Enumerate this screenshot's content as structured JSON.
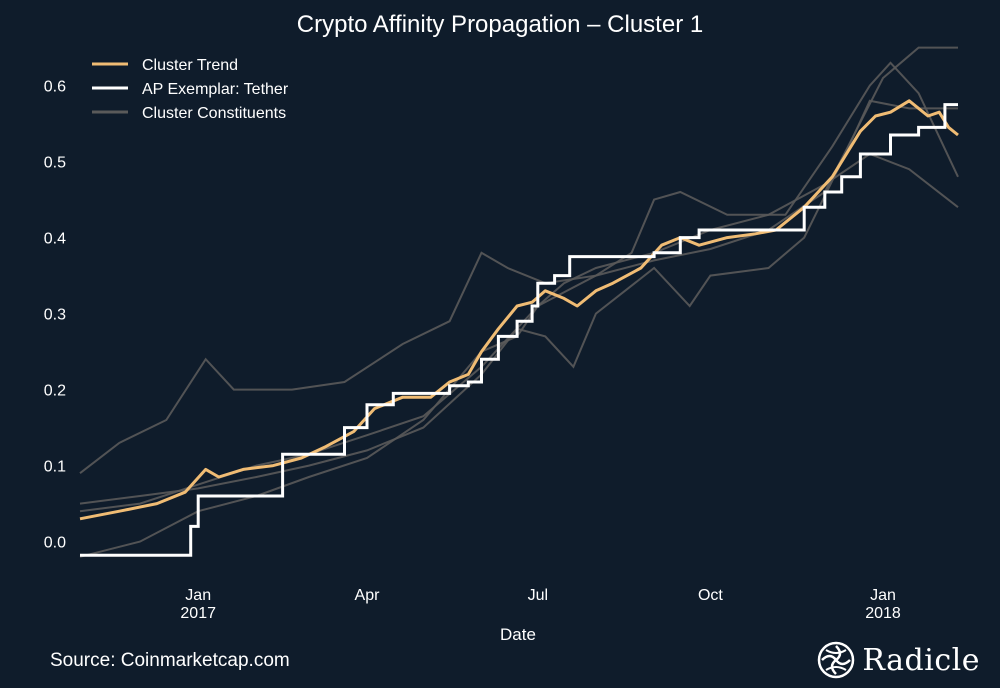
{
  "chart_data": {
    "type": "line",
    "title": "Crypto Affinity Propagation – Cluster 1",
    "xlabel": "Date",
    "ylabel": "",
    "x_ticks": [
      {
        "label": "Jan",
        "sub": "2017"
      },
      {
        "label": "Apr",
        "sub": ""
      },
      {
        "label": "Jul",
        "sub": ""
      },
      {
        "label": "Oct",
        "sub": ""
      },
      {
        "label": "Jan",
        "sub": "2018"
      }
    ],
    "x_range": [
      "2016-10-30",
      "2018-02-10"
    ],
    "y_ticks": [
      "0.0",
      "0.1",
      "0.2",
      "0.3",
      "0.4",
      "0.5",
      "0.6"
    ],
    "ylim": [
      -0.04,
      0.66
    ],
    "grid": false,
    "legend_position": "top-left",
    "series": [
      {
        "name": "Cluster Trend",
        "color": "#f0bc74",
        "style": "line",
        "points": [
          [
            "2016-10-30",
            0.03
          ],
          [
            "2016-11-20",
            0.04
          ],
          [
            "2016-12-10",
            0.05
          ],
          [
            "2016-12-25",
            0.065
          ],
          [
            "2017-01-05",
            0.095
          ],
          [
            "2017-01-12",
            0.085
          ],
          [
            "2017-01-25",
            0.095
          ],
          [
            "2017-02-10",
            0.1
          ],
          [
            "2017-02-25",
            0.11
          ],
          [
            "2017-03-10",
            0.125
          ],
          [
            "2017-03-25",
            0.145
          ],
          [
            "2017-04-05",
            0.175
          ],
          [
            "2017-04-20",
            0.19
          ],
          [
            "2017-05-05",
            0.19
          ],
          [
            "2017-05-15",
            0.21
          ],
          [
            "2017-05-25",
            0.22
          ],
          [
            "2017-06-01",
            0.25
          ],
          [
            "2017-06-10",
            0.28
          ],
          [
            "2017-06-20",
            0.31
          ],
          [
            "2017-06-28",
            0.315
          ],
          [
            "2017-07-05",
            0.33
          ],
          [
            "2017-07-15",
            0.32
          ],
          [
            "2017-07-22",
            0.31
          ],
          [
            "2017-08-01",
            0.33
          ],
          [
            "2017-08-10",
            0.34
          ],
          [
            "2017-08-25",
            0.36
          ],
          [
            "2017-09-05",
            0.39
          ],
          [
            "2017-09-15",
            0.4
          ],
          [
            "2017-09-25",
            0.39
          ],
          [
            "2017-10-10",
            0.4
          ],
          [
            "2017-10-25",
            0.405
          ],
          [
            "2017-11-05",
            0.41
          ],
          [
            "2017-11-20",
            0.44
          ],
          [
            "2017-12-05",
            0.48
          ],
          [
            "2017-12-20",
            0.54
          ],
          [
            "2017-12-28",
            0.56
          ],
          [
            "2018-01-05",
            0.565
          ],
          [
            "2018-01-15",
            0.58
          ],
          [
            "2018-01-25",
            0.56
          ],
          [
            "2018-01-31",
            0.565
          ],
          [
            "2018-02-05",
            0.545
          ],
          [
            "2018-02-10",
            0.535
          ]
        ]
      },
      {
        "name": "AP Exemplar: Tether",
        "color": "#ffffff",
        "style": "step",
        "points": [
          [
            "2016-10-30",
            -0.018
          ],
          [
            "2016-12-28",
            0.02
          ],
          [
            "2017-01-01",
            0.06
          ],
          [
            "2017-01-20",
            0.06
          ],
          [
            "2017-02-15",
            0.115
          ],
          [
            "2017-03-10",
            0.115
          ],
          [
            "2017-03-20",
            0.15
          ],
          [
            "2017-04-01",
            0.18
          ],
          [
            "2017-04-15",
            0.195
          ],
          [
            "2017-05-01",
            0.195
          ],
          [
            "2017-05-15",
            0.205
          ],
          [
            "2017-05-25",
            0.21
          ],
          [
            "2017-06-01",
            0.24
          ],
          [
            "2017-06-10",
            0.27
          ],
          [
            "2017-06-20",
            0.29
          ],
          [
            "2017-06-28",
            0.31
          ],
          [
            "2017-07-01",
            0.34
          ],
          [
            "2017-07-10",
            0.35
          ],
          [
            "2017-07-18",
            0.375
          ],
          [
            "2017-08-01",
            0.375
          ],
          [
            "2017-08-20",
            0.375
          ],
          [
            "2017-09-01",
            0.38
          ],
          [
            "2017-09-15",
            0.4
          ],
          [
            "2017-09-25",
            0.41
          ],
          [
            "2017-11-10",
            0.41
          ],
          [
            "2017-11-20",
            0.44
          ],
          [
            "2017-12-01",
            0.46
          ],
          [
            "2017-12-10",
            0.48
          ],
          [
            "2017-12-20",
            0.51
          ],
          [
            "2018-01-05",
            0.535
          ],
          [
            "2018-01-20",
            0.545
          ],
          [
            "2018-02-02",
            0.545
          ],
          [
            "2018-02-03",
            0.575
          ],
          [
            "2018-02-10",
            0.575
          ]
        ]
      },
      {
        "name": "Cluster Constituents",
        "color": "#5a5a5a",
        "style": "line",
        "members": [
          {
            "points": [
              [
                "2016-10-30",
                0.09
              ],
              [
                "2016-11-20",
                0.13
              ],
              [
                "2016-12-15",
                0.16
              ],
              [
                "2017-01-05",
                0.24
              ],
              [
                "2017-01-20",
                0.2
              ],
              [
                "2017-02-20",
                0.2
              ],
              [
                "2017-03-20",
                0.21
              ],
              [
                "2017-04-20",
                0.26
              ],
              [
                "2017-05-15",
                0.29
              ],
              [
                "2017-06-01",
                0.38
              ],
              [
                "2017-06-15",
                0.36
              ],
              [
                "2017-07-05",
                0.34
              ],
              [
                "2017-08-01",
                0.35
              ],
              [
                "2017-08-20",
                0.38
              ],
              [
                "2017-09-01",
                0.45
              ],
              [
                "2017-09-15",
                0.46
              ],
              [
                "2017-10-10",
                0.43
              ],
              [
                "2017-11-10",
                0.43
              ],
              [
                "2017-12-05",
                0.52
              ],
              [
                "2017-12-25",
                0.6
              ],
              [
                "2018-01-05",
                0.63
              ],
              [
                "2018-01-20",
                0.59
              ],
              [
                "2018-02-10",
                0.48
              ]
            ]
          },
          {
            "points": [
              [
                "2016-10-30",
                0.04
              ],
              [
                "2016-12-01",
                0.05
              ],
              [
                "2017-01-01",
                0.075
              ],
              [
                "2017-02-01",
                0.1
              ],
              [
                "2017-03-01",
                0.115
              ],
              [
                "2017-04-01",
                0.14
              ],
              [
                "2017-05-01",
                0.165
              ],
              [
                "2017-06-01",
                0.23
              ],
              [
                "2017-07-01",
                0.31
              ],
              [
                "2017-08-01",
                0.35
              ],
              [
                "2017-09-01",
                0.37
              ],
              [
                "2017-10-01",
                0.385
              ],
              [
                "2017-11-01",
                0.41
              ],
              [
                "2017-12-01",
                0.46
              ],
              [
                "2018-01-01",
                0.61
              ],
              [
                "2018-01-20",
                0.65
              ],
              [
                "2018-02-10",
                0.65
              ]
            ]
          },
          {
            "points": [
              [
                "2016-10-30",
                -0.02
              ],
              [
                "2016-12-01",
                0.0
              ],
              [
                "2017-01-01",
                0.04
              ],
              [
                "2017-02-01",
                0.06
              ],
              [
                "2017-03-01",
                0.085
              ],
              [
                "2017-04-01",
                0.11
              ],
              [
                "2017-05-01",
                0.16
              ],
              [
                "2017-06-01",
                0.25
              ],
              [
                "2017-06-20",
                0.27
              ],
              [
                "2017-07-01",
                0.31
              ],
              [
                "2017-07-15",
                0.34
              ],
              [
                "2017-08-01",
                0.36
              ],
              [
                "2017-09-01",
                0.38
              ],
              [
                "2017-10-01",
                0.41
              ],
              [
                "2017-11-01",
                0.43
              ],
              [
                "2017-12-01",
                0.47
              ],
              [
                "2017-12-25",
                0.51
              ],
              [
                "2018-01-15",
                0.49
              ],
              [
                "2018-02-10",
                0.44
              ]
            ]
          },
          {
            "points": [
              [
                "2016-10-30",
                0.05
              ],
              [
                "2016-12-01",
                0.06
              ],
              [
                "2017-01-01",
                0.07
              ],
              [
                "2017-02-01",
                0.085
              ],
              [
                "2017-03-01",
                0.1
              ],
              [
                "2017-04-01",
                0.12
              ],
              [
                "2017-05-01",
                0.15
              ],
              [
                "2017-06-01",
                0.22
              ],
              [
                "2017-06-20",
                0.28
              ],
              [
                "2017-07-05",
                0.27
              ],
              [
                "2017-07-20",
                0.23
              ],
              [
                "2017-08-01",
                0.3
              ],
              [
                "2017-09-01",
                0.36
              ],
              [
                "2017-09-20",
                0.31
              ],
              [
                "2017-10-01",
                0.35
              ],
              [
                "2017-11-01",
                0.36
              ],
              [
                "2017-11-20",
                0.4
              ],
              [
                "2017-12-10",
                0.5
              ],
              [
                "2017-12-25",
                0.58
              ],
              [
                "2018-01-15",
                0.57
              ],
              [
                "2018-02-10",
                0.57
              ]
            ]
          }
        ]
      }
    ]
  },
  "footer": {
    "source": "Source: Coinmarketcap.com",
    "brand": "Radicle",
    "brand_icon": "radicle-logo-icon"
  }
}
